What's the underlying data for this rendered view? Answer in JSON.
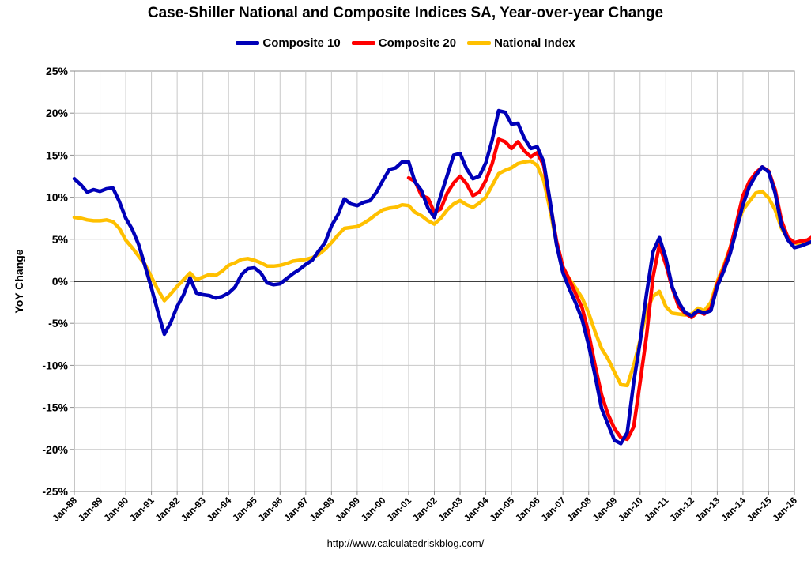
{
  "chart_data": {
    "type": "line",
    "title": "Case-Shiller National and Composite Indices SA, Year-over-year Change",
    "xlabel": "",
    "ylabel": "YoY Change",
    "x_tick_labels": [
      "Jan-88",
      "Jan-89",
      "Jan-90",
      "Jan-91",
      "Jan-92",
      "Jan-93",
      "Jan-94",
      "Jan-95",
      "Jan-96",
      "Jan-97",
      "Jan-98",
      "Jan-99",
      "Jan-00",
      "Jan-01",
      "Jan-02",
      "Jan-03",
      "Jan-04",
      "Jan-05",
      "Jan-06",
      "Jan-07",
      "Jan-08",
      "Jan-09",
      "Jan-10",
      "Jan-11",
      "Jan-12",
      "Jan-13",
      "Jan-14",
      "Jan-15",
      "Jan-16"
    ],
    "y_tick_labels": [
      "25%",
      "20%",
      "15%",
      "10%",
      "5%",
      "0%",
      "-5%",
      "-10%",
      "-15%",
      "-20%",
      "-25%"
    ],
    "y_ticks": [
      25,
      20,
      15,
      10,
      5,
      0,
      -5,
      -10,
      -15,
      -20,
      -25
    ],
    "ylim": [
      -25,
      25
    ],
    "xlim": [
      1988.0,
      2016.0
    ],
    "grid": true,
    "legend_position": "top",
    "source": "http://www.calculatedriskblog.com/",
    "series": [
      {
        "name": "Composite 10",
        "color": "#0000B8",
        "points": [
          [
            1988.0,
            12.2
          ],
          [
            1988.25,
            11.5
          ],
          [
            1988.5,
            10.6
          ],
          [
            1988.75,
            10.9
          ],
          [
            1989.0,
            10.7
          ],
          [
            1989.25,
            11.0
          ],
          [
            1989.5,
            11.1
          ],
          [
            1989.75,
            9.5
          ],
          [
            1990.0,
            7.5
          ],
          [
            1990.25,
            6.2
          ],
          [
            1990.5,
            4.4
          ],
          [
            1990.75,
            1.8
          ],
          [
            1991.0,
            -0.8
          ],
          [
            1991.25,
            -3.6
          ],
          [
            1991.5,
            -6.3
          ],
          [
            1991.75,
            -4.9
          ],
          [
            1992.0,
            -3.0
          ],
          [
            1992.25,
            -1.6
          ],
          [
            1992.5,
            0.4
          ],
          [
            1992.75,
            -1.4
          ],
          [
            1993.0,
            -1.6
          ],
          [
            1993.25,
            -1.7
          ],
          [
            1993.5,
            -2.0
          ],
          [
            1993.75,
            -1.8
          ],
          [
            1994.0,
            -1.4
          ],
          [
            1994.25,
            -0.7
          ],
          [
            1994.5,
            0.8
          ],
          [
            1994.75,
            1.5
          ],
          [
            1995.0,
            1.6
          ],
          [
            1995.25,
            1.0
          ],
          [
            1995.5,
            -0.2
          ],
          [
            1995.75,
            -0.4
          ],
          [
            1996.0,
            -0.3
          ],
          [
            1996.25,
            0.3
          ],
          [
            1996.5,
            0.9
          ],
          [
            1996.75,
            1.4
          ],
          [
            1997.0,
            2.0
          ],
          [
            1997.25,
            2.5
          ],
          [
            1997.5,
            3.6
          ],
          [
            1997.75,
            4.6
          ],
          [
            1998.0,
            6.6
          ],
          [
            1998.25,
            7.9
          ],
          [
            1998.5,
            9.8
          ],
          [
            1998.75,
            9.2
          ],
          [
            1999.0,
            9.0
          ],
          [
            1999.25,
            9.4
          ],
          [
            1999.5,
            9.6
          ],
          [
            1999.75,
            10.6
          ],
          [
            2000.0,
            12.0
          ],
          [
            2000.25,
            13.3
          ],
          [
            2000.5,
            13.5
          ],
          [
            2000.75,
            14.2
          ],
          [
            2001.0,
            14.2
          ],
          [
            2001.25,
            11.8
          ],
          [
            2001.5,
            10.8
          ],
          [
            2001.75,
            8.7
          ],
          [
            2002.0,
            7.6
          ],
          [
            2002.25,
            10.2
          ],
          [
            2002.5,
            12.6
          ],
          [
            2002.75,
            15.0
          ],
          [
            2003.0,
            15.2
          ],
          [
            2003.25,
            13.4
          ],
          [
            2003.5,
            12.2
          ],
          [
            2003.75,
            12.5
          ],
          [
            2004.0,
            14.1
          ],
          [
            2004.25,
            16.8
          ],
          [
            2004.5,
            20.3
          ],
          [
            2004.75,
            20.1
          ],
          [
            2005.0,
            18.7
          ],
          [
            2005.25,
            18.8
          ],
          [
            2005.5,
            17.0
          ],
          [
            2005.75,
            15.8
          ],
          [
            2006.0,
            16.0
          ],
          [
            2006.25,
            14.2
          ],
          [
            2006.5,
            9.5
          ],
          [
            2006.75,
            4.4
          ],
          [
            2007.0,
            1.0
          ],
          [
            2007.25,
            -0.9
          ],
          [
            2007.5,
            -2.6
          ],
          [
            2007.75,
            -4.6
          ],
          [
            2008.0,
            -7.6
          ],
          [
            2008.25,
            -11.2
          ],
          [
            2008.5,
            -15.1
          ],
          [
            2008.75,
            -17.0
          ],
          [
            2009.0,
            -18.9
          ],
          [
            2009.25,
            -19.3
          ],
          [
            2009.5,
            -18.0
          ],
          [
            2009.75,
            -12.0
          ],
          [
            2010.0,
            -7.2
          ],
          [
            2010.25,
            -1.5
          ],
          [
            2010.5,
            3.5
          ],
          [
            2010.75,
            5.2
          ],
          [
            2011.0,
            2.8
          ],
          [
            2011.25,
            -0.7
          ],
          [
            2011.5,
            -2.5
          ],
          [
            2011.75,
            -3.7
          ],
          [
            2012.0,
            -4.1
          ],
          [
            2012.25,
            -3.5
          ],
          [
            2012.5,
            -3.8
          ],
          [
            2012.75,
            -3.5
          ],
          [
            2013.0,
            -0.6
          ],
          [
            2013.25,
            1.2
          ],
          [
            2013.5,
            3.3
          ],
          [
            2013.75,
            6.2
          ],
          [
            2014.0,
            9.1
          ],
          [
            2014.25,
            11.3
          ],
          [
            2014.5,
            12.6
          ],
          [
            2014.75,
            13.6
          ],
          [
            2015.0,
            13.0
          ],
          [
            2015.25,
            10.5
          ],
          [
            2015.5,
            6.6
          ],
          [
            2015.75,
            4.9
          ],
          [
            2016.0,
            4.0
          ],
          [
            2016.25,
            4.2
          ],
          [
            2016.5,
            4.5
          ],
          [
            2016.75,
            4.8
          ]
        ]
      },
      {
        "name": "Composite 20",
        "color": "#FF0000",
        "points": [
          [
            2001.0,
            12.3
          ],
          [
            2001.25,
            11.9
          ],
          [
            2001.5,
            10.2
          ],
          [
            2001.75,
            9.9
          ],
          [
            2002.0,
            8.2
          ],
          [
            2002.25,
            8.6
          ],
          [
            2002.5,
            10.5
          ],
          [
            2002.75,
            11.7
          ],
          [
            2003.0,
            12.5
          ],
          [
            2003.25,
            11.6
          ],
          [
            2003.5,
            10.2
          ],
          [
            2003.75,
            10.6
          ],
          [
            2004.0,
            12.0
          ],
          [
            2004.25,
            14.0
          ],
          [
            2004.5,
            16.9
          ],
          [
            2004.75,
            16.6
          ],
          [
            2005.0,
            15.8
          ],
          [
            2005.25,
            16.6
          ],
          [
            2005.5,
            15.5
          ],
          [
            2005.75,
            14.8
          ],
          [
            2006.0,
            15.3
          ],
          [
            2006.25,
            13.8
          ],
          [
            2006.5,
            9.3
          ],
          [
            2006.75,
            4.8
          ],
          [
            2007.0,
            1.7
          ],
          [
            2007.25,
            0.2
          ],
          [
            2007.5,
            -1.5
          ],
          [
            2007.75,
            -3.2
          ],
          [
            2008.0,
            -6.2
          ],
          [
            2008.25,
            -10.0
          ],
          [
            2008.5,
            -13.5
          ],
          [
            2008.75,
            -15.8
          ],
          [
            2009.0,
            -17.5
          ],
          [
            2009.25,
            -18.6
          ],
          [
            2009.5,
            -18.8
          ],
          [
            2009.75,
            -17.3
          ],
          [
            2010.0,
            -12.0
          ],
          [
            2010.25,
            -6.5
          ],
          [
            2010.5,
            0.5
          ],
          [
            2010.75,
            4.3
          ],
          [
            2011.0,
            2.0
          ],
          [
            2011.25,
            -0.8
          ],
          [
            2011.5,
            -3.0
          ],
          [
            2011.75,
            -3.8
          ],
          [
            2012.0,
            -4.3
          ],
          [
            2012.25,
            -3.6
          ],
          [
            2012.5,
            -3.9
          ],
          [
            2012.75,
            -3.2
          ],
          [
            2013.0,
            -0.3
          ],
          [
            2013.25,
            1.5
          ],
          [
            2013.5,
            3.9
          ],
          [
            2013.75,
            7.0
          ],
          [
            2014.0,
            10.2
          ],
          [
            2014.25,
            11.9
          ],
          [
            2014.5,
            12.9
          ],
          [
            2014.75,
            13.6
          ],
          [
            2015.0,
            13.1
          ],
          [
            2015.25,
            10.9
          ],
          [
            2015.5,
            7.2
          ],
          [
            2015.75,
            5.2
          ],
          [
            2016.0,
            4.6
          ],
          [
            2016.25,
            4.8
          ],
          [
            2016.5,
            4.9
          ],
          [
            2016.75,
            5.4
          ]
        ]
      },
      {
        "name": "National Index",
        "color": "#FFC000",
        "points": [
          [
            1988.0,
            7.6
          ],
          [
            1988.25,
            7.5
          ],
          [
            1988.5,
            7.3
          ],
          [
            1988.75,
            7.2
          ],
          [
            1989.0,
            7.2
          ],
          [
            1989.25,
            7.3
          ],
          [
            1989.5,
            7.1
          ],
          [
            1989.75,
            6.3
          ],
          [
            1990.0,
            4.9
          ],
          [
            1990.25,
            4.0
          ],
          [
            1990.5,
            3.0
          ],
          [
            1990.75,
            2.0
          ],
          [
            1991.0,
            0.5
          ],
          [
            1991.25,
            -1.0
          ],
          [
            1991.5,
            -2.3
          ],
          [
            1991.75,
            -1.5
          ],
          [
            1992.0,
            -0.6
          ],
          [
            1992.25,
            0.2
          ],
          [
            1992.5,
            1.0
          ],
          [
            1992.75,
            0.2
          ],
          [
            1993.0,
            0.5
          ],
          [
            1993.25,
            0.8
          ],
          [
            1993.5,
            0.7
          ],
          [
            1993.75,
            1.2
          ],
          [
            1994.0,
            1.9
          ],
          [
            1994.25,
            2.2
          ],
          [
            1994.5,
            2.6
          ],
          [
            1994.75,
            2.7
          ],
          [
            1995.0,
            2.5
          ],
          [
            1995.25,
            2.2
          ],
          [
            1995.5,
            1.8
          ],
          [
            1995.75,
            1.8
          ],
          [
            1996.0,
            1.9
          ],
          [
            1996.25,
            2.1
          ],
          [
            1996.5,
            2.4
          ],
          [
            1996.75,
            2.5
          ],
          [
            1997.0,
            2.6
          ],
          [
            1997.25,
            2.8
          ],
          [
            1997.5,
            3.2
          ],
          [
            1997.75,
            3.8
          ],
          [
            1998.0,
            4.6
          ],
          [
            1998.25,
            5.5
          ],
          [
            1998.5,
            6.3
          ],
          [
            1998.75,
            6.4
          ],
          [
            1999.0,
            6.5
          ],
          [
            1999.25,
            6.9
          ],
          [
            1999.5,
            7.4
          ],
          [
            1999.75,
            8.0
          ],
          [
            2000.0,
            8.5
          ],
          [
            2000.25,
            8.7
          ],
          [
            2000.5,
            8.8
          ],
          [
            2000.75,
            9.1
          ],
          [
            2001.0,
            9.0
          ],
          [
            2001.25,
            8.2
          ],
          [
            2001.5,
            7.8
          ],
          [
            2001.75,
            7.2
          ],
          [
            2002.0,
            6.8
          ],
          [
            2002.25,
            7.5
          ],
          [
            2002.5,
            8.5
          ],
          [
            2002.75,
            9.2
          ],
          [
            2003.0,
            9.6
          ],
          [
            2003.25,
            9.1
          ],
          [
            2003.5,
            8.8
          ],
          [
            2003.75,
            9.3
          ],
          [
            2004.0,
            10.0
          ],
          [
            2004.25,
            11.4
          ],
          [
            2004.5,
            12.8
          ],
          [
            2004.75,
            13.2
          ],
          [
            2005.0,
            13.5
          ],
          [
            2005.25,
            14.0
          ],
          [
            2005.5,
            14.2
          ],
          [
            2005.75,
            14.3
          ],
          [
            2006.0,
            13.8
          ],
          [
            2006.25,
            12.0
          ],
          [
            2006.5,
            8.5
          ],
          [
            2006.75,
            4.5
          ],
          [
            2007.0,
            1.5
          ],
          [
            2007.25,
            0.3
          ],
          [
            2007.5,
            -0.8
          ],
          [
            2007.75,
            -2.0
          ],
          [
            2008.0,
            -3.8
          ],
          [
            2008.25,
            -6.0
          ],
          [
            2008.5,
            -8.0
          ],
          [
            2008.75,
            -9.2
          ],
          [
            2009.0,
            -10.8
          ],
          [
            2009.25,
            -12.3
          ],
          [
            2009.5,
            -12.4
          ],
          [
            2009.75,
            -10.0
          ],
          [
            2010.0,
            -7.0
          ],
          [
            2010.25,
            -3.5
          ],
          [
            2010.5,
            -1.8
          ],
          [
            2010.75,
            -1.2
          ],
          [
            2011.0,
            -3.0
          ],
          [
            2011.25,
            -3.8
          ],
          [
            2011.5,
            -3.9
          ],
          [
            2011.75,
            -4.0
          ],
          [
            2012.0,
            -3.9
          ],
          [
            2012.25,
            -3.2
          ],
          [
            2012.5,
            -3.5
          ],
          [
            2012.75,
            -2.5
          ],
          [
            2013.0,
            0.0
          ],
          [
            2013.25,
            1.8
          ],
          [
            2013.5,
            4.0
          ],
          [
            2013.75,
            6.5
          ],
          [
            2014.0,
            8.5
          ],
          [
            2014.25,
            9.5
          ],
          [
            2014.5,
            10.5
          ],
          [
            2014.75,
            10.7
          ],
          [
            2015.0,
            9.9
          ],
          [
            2015.25,
            8.5
          ],
          [
            2015.5,
            6.3
          ],
          [
            2015.75,
            5.0
          ],
          [
            2016.0,
            4.6
          ],
          [
            2016.25,
            4.4
          ],
          [
            2016.5,
            4.5
          ],
          [
            2016.75,
            4.7
          ]
        ]
      }
    ]
  }
}
